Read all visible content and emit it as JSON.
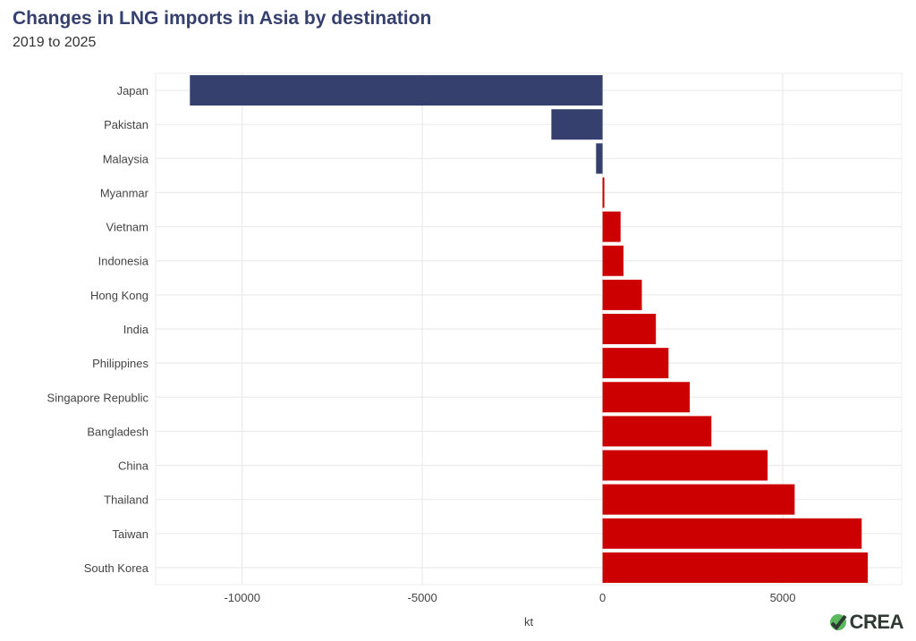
{
  "chart_data": {
    "type": "bar",
    "orientation": "horizontal",
    "title": "Changes in LNG imports in Asia by destination",
    "subtitle": "2019 to 2025",
    "xlabel": "kt",
    "ylabel": "",
    "xlim": [
      -12400,
      8300
    ],
    "xticks": [
      -10000,
      -5000,
      0,
      5000
    ],
    "grid": true,
    "categories": [
      "Japan",
      "Pakistan",
      "Malaysia",
      "Myanmar",
      "Vietnam",
      "Indonesia",
      "Hong Kong",
      "India",
      "Philippines",
      "Singapore Republic",
      "Bangladesh",
      "China",
      "Thailand",
      "Taiwan",
      "South Korea"
    ],
    "values": [
      -11450,
      -1420,
      -180,
      50,
      500,
      580,
      1090,
      1480,
      1830,
      2420,
      3020,
      4580,
      5330,
      7190,
      7360
    ],
    "colors": {
      "negative": "#35406e",
      "positive": "#cc0000"
    }
  },
  "logo": {
    "text": "CREA"
  }
}
